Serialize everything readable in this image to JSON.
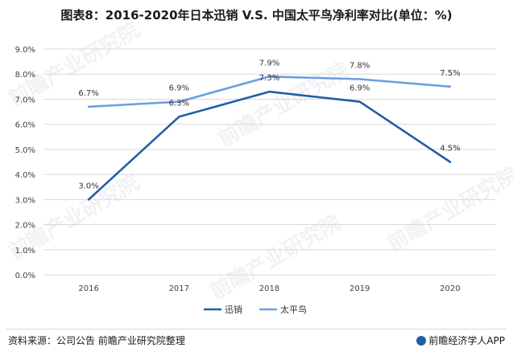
{
  "title": "图表8：2016-2020年日本迅销 V.S. 中国太平鸟净利率对比(单位：%)",
  "footer": {
    "source": "资料来源：公司公告 前瞻产业研究院整理",
    "brand": "前瞻经济学人APP"
  },
  "watermark": "前瞻产业研究院",
  "colors": {
    "series_1": "#1f5fa8",
    "series_2": "#6a9fe0",
    "grid": "#d9d9d9",
    "tick_text": "#404040"
  },
  "chart_data": {
    "type": "line",
    "x": [
      "2016",
      "2017",
      "2018",
      "2019",
      "2020"
    ],
    "series": [
      {
        "name": "迅销",
        "values": [
          3.0,
          6.3,
          7.3,
          6.9,
          4.5
        ],
        "labels": [
          "3.0%",
          "6.3%",
          "7.3%",
          "6.9%",
          "4.5%"
        ]
      },
      {
        "name": "太平鸟",
        "values": [
          6.7,
          6.9,
          7.9,
          7.8,
          7.5
        ],
        "labels": [
          "6.7%",
          "6.9%",
          "7.9%",
          "7.8%",
          "7.5%"
        ]
      }
    ],
    "ylim": [
      0,
      9
    ],
    "yticks": [
      "0.0%",
      "1.0%",
      "2.0%",
      "3.0%",
      "4.0%",
      "5.0%",
      "6.0%",
      "7.0%",
      "8.0%",
      "9.0%"
    ],
    "grid": "horizontal",
    "legend_position": "bottom"
  }
}
